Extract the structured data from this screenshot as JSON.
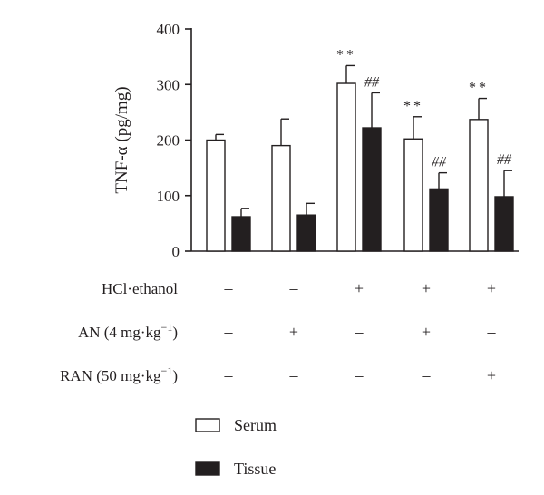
{
  "chart_data": {
    "type": "bar",
    "ylabel": "TNF-α (pg/mg)",
    "ylim": [
      0,
      400
    ],
    "yticks": [
      0,
      100,
      200,
      300,
      400
    ],
    "grid": false,
    "legend_position": "bottom",
    "series": [
      {
        "name": "Serum",
        "color": "#ffffff",
        "values": [
          200,
          190,
          302,
          202,
          237
        ],
        "errors": [
          10,
          48,
          32,
          40,
          38
        ],
        "annotations": [
          "",
          "",
          "**",
          "**",
          "**"
        ]
      },
      {
        "name": "Tissue",
        "color": "#231f20",
        "values": [
          62,
          65,
          222,
          112,
          98
        ],
        "errors": [
          15,
          21,
          63,
          29,
          47
        ],
        "annotations": [
          "",
          "",
          "##",
          "##",
          "##"
        ]
      }
    ],
    "treatments": [
      {
        "label": "HCl·ethanol",
        "marks": [
          "–",
          "–",
          "+",
          "+",
          "+"
        ]
      },
      {
        "label": "AN (4 mg·kg",
        "sup": "−1",
        "close": ")",
        "marks": [
          "–",
          "+",
          "–",
          "+",
          "–"
        ]
      },
      {
        "label": "RAN (50 mg·kg",
        "sup": "−1",
        "close": ")",
        "marks": [
          "–",
          "–",
          "–",
          "–",
          "+"
        ]
      }
    ]
  }
}
